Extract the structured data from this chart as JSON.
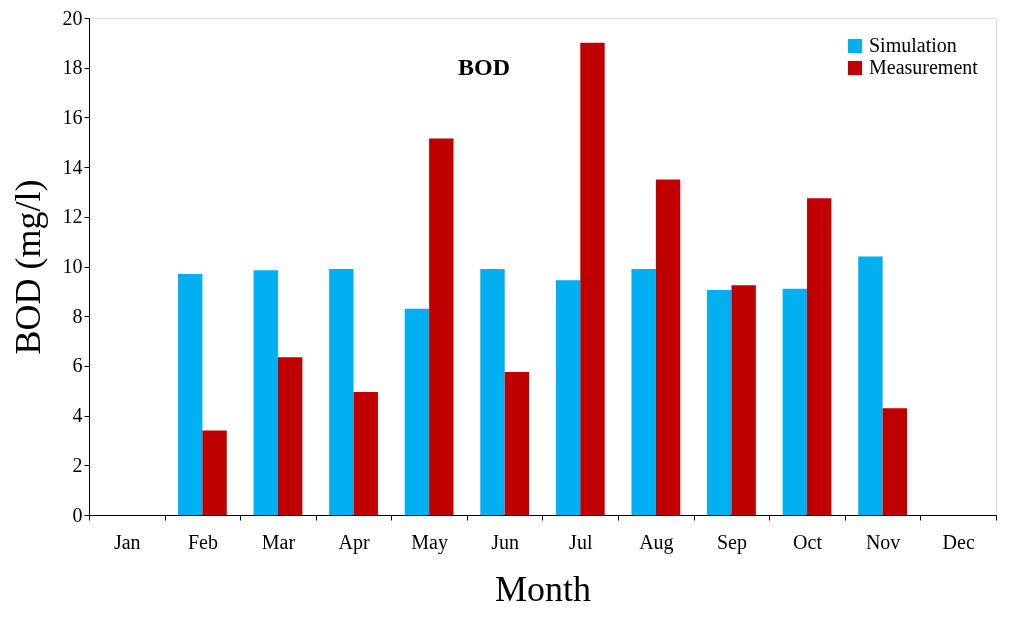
{
  "chart_data": {
    "type": "bar",
    "title": "BOD",
    "xlabel": "Month",
    "ylabel": "BOD (mg/l)",
    "categories": [
      "Jan",
      "Feb",
      "Mar",
      "Apr",
      "May",
      "Jun",
      "Jul",
      "Aug",
      "Sep",
      "Oct",
      "Nov",
      "Dec"
    ],
    "series": [
      {
        "name": "Simulation",
        "color": "#00b0f0",
        "values": [
          null,
          9.7,
          9.85,
          9.9,
          8.3,
          9.9,
          9.45,
          9.9,
          9.05,
          9.1,
          10.4,
          null
        ]
      },
      {
        "name": "Measurement",
        "color": "#c00000",
        "values": [
          null,
          3.4,
          6.35,
          4.95,
          15.15,
          5.75,
          19.0,
          13.5,
          9.25,
          12.75,
          4.3,
          null
        ]
      }
    ],
    "ylim": [
      0,
      20
    ],
    "yticks": [
      0,
      2,
      4,
      6,
      8,
      10,
      12,
      14,
      16,
      18,
      20
    ],
    "grid": false,
    "legend": "top right"
  }
}
